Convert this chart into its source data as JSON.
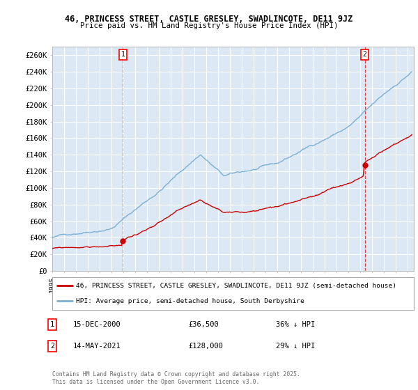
{
  "title_line1": "46, PRINCESS STREET, CASTLE GRESLEY, SWADLINCOTE, DE11 9JZ",
  "title_line2": "Price paid vs. HM Land Registry's House Price Index (HPI)",
  "ylim": [
    0,
    270000
  ],
  "yticks": [
    0,
    20000,
    40000,
    60000,
    80000,
    100000,
    120000,
    140000,
    160000,
    180000,
    200000,
    220000,
    240000,
    260000
  ],
  "ytick_labels": [
    "£0",
    "£20K",
    "£40K",
    "£60K",
    "£80K",
    "£100K",
    "£120K",
    "£140K",
    "£160K",
    "£180K",
    "£200K",
    "£220K",
    "£240K",
    "£260K"
  ],
  "hpi_color": "#7bafd4",
  "price_color": "#cc0000",
  "vline1_color": "#aaaaaa",
  "vline2_color": "#dd4444",
  "sale1_x": 2000.96,
  "sale1_y": 36500,
  "sale2_x": 2021.37,
  "sale2_y": 128000,
  "legend_label_red": "46, PRINCESS STREET, CASTLE GRESLEY, SWADLINCOTE, DE11 9JZ (semi-detached house)",
  "legend_label_blue": "HPI: Average price, semi-detached house, South Derbyshire",
  "note1_label": "1",
  "note1_date": "15-DEC-2000",
  "note1_price": "£36,500",
  "note1_hpi": "36% ↓ HPI",
  "note2_label": "2",
  "note2_date": "14-MAY-2021",
  "note2_price": "£128,000",
  "note2_hpi": "29% ↓ HPI",
  "copyright": "Contains HM Land Registry data © Crown copyright and database right 2025.\nThis data is licensed under the Open Government Licence v3.0.",
  "bg_color": "#ffffff",
  "plot_bg_color": "#dce9f5",
  "grid_color": "#ffffff",
  "xlim_start": 1995.0,
  "xlim_end": 2025.5
}
